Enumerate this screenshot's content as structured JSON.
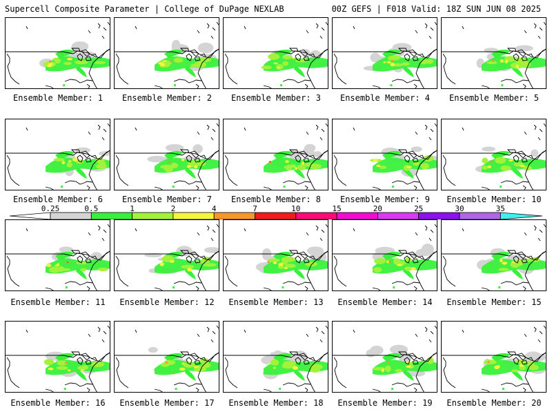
{
  "header": {
    "left": "Supercell Composite Parameter | College of DuPage NEXLAB",
    "right": "00Z GEFS | F018 Valid: 18Z SUN JUN 08 2025"
  },
  "panels": [
    {
      "label": "Ensemble Member: 1"
    },
    {
      "label": "Ensemble Member: 2"
    },
    {
      "label": "Ensemble Member: 3"
    },
    {
      "label": "Ensemble Member: 4"
    },
    {
      "label": "Ensemble Member: 5"
    },
    {
      "label": "Ensemble Member: 6"
    },
    {
      "label": "Ensemble Member: 7"
    },
    {
      "label": "Ensemble Member: 8"
    },
    {
      "label": "Ensemble Member: 9"
    },
    {
      "label": "Ensemble Member: 10"
    },
    {
      "label": "Ensemble Member: 11"
    },
    {
      "label": "Ensemble Member: 12"
    },
    {
      "label": "Ensemble Member: 13"
    },
    {
      "label": "Ensemble Member: 14"
    },
    {
      "label": "Ensemble Member: 15"
    },
    {
      "label": "Ensemble Member: 16"
    },
    {
      "label": "Ensemble Member: 17"
    },
    {
      "label": "Ensemble Member: 18"
    },
    {
      "label": "Ensemble Member: 19"
    },
    {
      "label": "Ensemble Member: 20"
    }
  ],
  "colorbar": {
    "ticks": [
      "0.25",
      "0.5",
      "1",
      "2",
      "4",
      "7",
      "10",
      "15",
      "20",
      "25",
      "30",
      "35"
    ],
    "colors": [
      "#d4d4d4",
      "#39f13a",
      "#a3f23a",
      "#f5f53a",
      "#f7962b",
      "#f21a1a",
      "#ff0a78",
      "#f40ad0",
      "#d83af0",
      "#8a12f0",
      "#b066e4",
      "#40f0f0"
    ]
  }
}
